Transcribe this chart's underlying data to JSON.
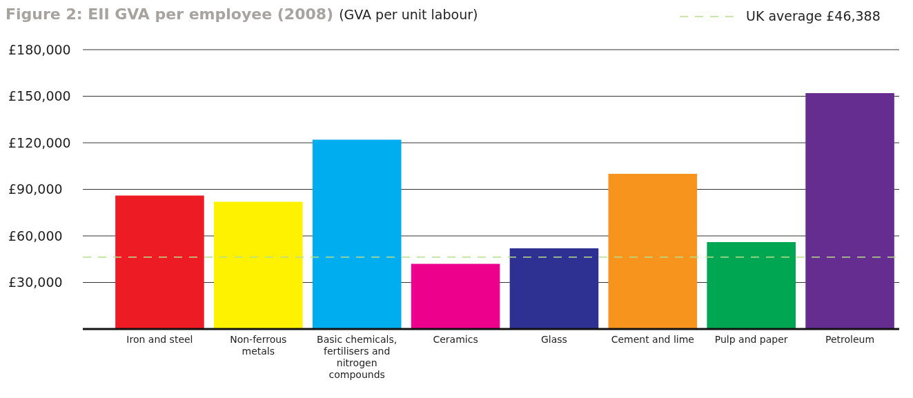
{
  "chart_data": {
    "type": "bar",
    "title": "Figure 2: EII GVA per employee (2008)",
    "subtitle": "(GVA per unit labour)",
    "categories": [
      "Iron and steel",
      "Non-ferrous metals",
      "Basic chemicals, fertilisers and nitrogen compounds",
      "Ceramics",
      "Glass",
      "Cement and lime",
      "Pulp and paper",
      "Petroleum"
    ],
    "values": [
      86000,
      82000,
      122000,
      42000,
      52000,
      100000,
      56000,
      152000
    ],
    "colors": [
      "#ed1c24",
      "#fff200",
      "#00aeef",
      "#ec008c",
      "#2e3192",
      "#f7941d",
      "#00a651",
      "#662d91"
    ],
    "ylim": [
      0,
      180000
    ],
    "yticks": [
      {
        "value": 30000,
        "label": "£30,000"
      },
      {
        "value": 60000,
        "label": "£60,000"
      },
      {
        "value": 90000,
        "label": "£90,000"
      },
      {
        "value": 120000,
        "label": "£120,000"
      },
      {
        "value": 150000,
        "label": "£150,000"
      },
      {
        "value": 180000,
        "label": "£180,000"
      }
    ],
    "grid": "y",
    "legend": "top right",
    "ref_lines": [
      {
        "axis": "y",
        "value": 46388,
        "label": "UK average £46,388",
        "color": "#b5e08a",
        "line_style": "dashed"
      }
    ]
  }
}
